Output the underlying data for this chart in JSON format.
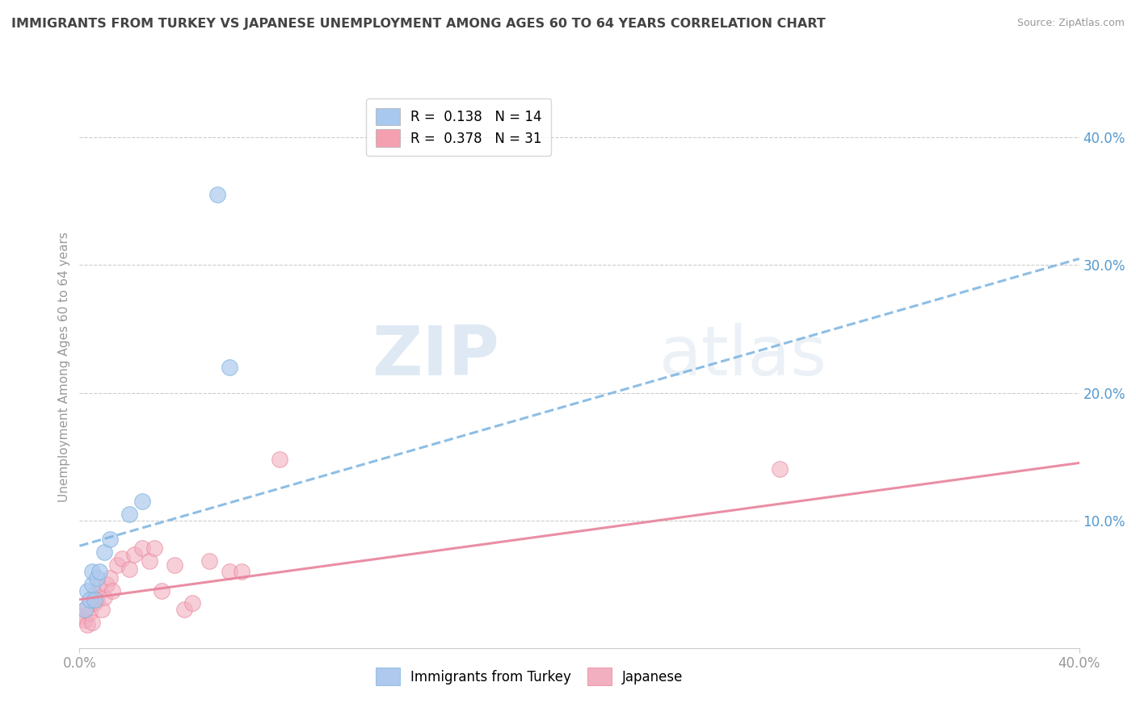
{
  "title": "IMMIGRANTS FROM TURKEY VS JAPANESE UNEMPLOYMENT AMONG AGES 60 TO 64 YEARS CORRELATION CHART",
  "source": "Source: ZipAtlas.com",
  "ylabel": "Unemployment Among Ages 60 to 64 years",
  "xlim": [
    0.0,
    0.4
  ],
  "ylim": [
    0.0,
    0.44
  ],
  "xtick_vals": [
    0.0,
    0.4
  ],
  "xtick_labels": [
    "0.0%",
    "40.0%"
  ],
  "ytick_vals": [
    0.1,
    0.2,
    0.3,
    0.4
  ],
  "ytick_labels_right": [
    "10.0%",
    "20.0%",
    "30.0%",
    "40.0%"
  ],
  "legend_entries": [
    {
      "label": "R =  0.138   N = 14",
      "color": "#a8c8f0"
    },
    {
      "label": "R =  0.378   N = 31",
      "color": "#f4a0b0"
    }
  ],
  "blue_scatter_x": [
    0.002,
    0.003,
    0.004,
    0.005,
    0.005,
    0.006,
    0.007,
    0.008,
    0.01,
    0.012,
    0.02,
    0.025,
    0.055,
    0.06
  ],
  "blue_scatter_y": [
    0.03,
    0.045,
    0.038,
    0.05,
    0.06,
    0.038,
    0.055,
    0.06,
    0.075,
    0.085,
    0.105,
    0.115,
    0.355,
    0.22
  ],
  "pink_scatter_x": [
    0.001,
    0.002,
    0.003,
    0.003,
    0.004,
    0.005,
    0.006,
    0.006,
    0.007,
    0.008,
    0.009,
    0.01,
    0.011,
    0.012,
    0.013,
    0.015,
    0.017,
    0.02,
    0.022,
    0.025,
    0.028,
    0.03,
    0.033,
    0.038,
    0.042,
    0.045,
    0.052,
    0.06,
    0.065,
    0.08,
    0.28
  ],
  "pink_scatter_y": [
    0.025,
    0.022,
    0.018,
    0.032,
    0.028,
    0.02,
    0.035,
    0.042,
    0.038,
    0.048,
    0.03,
    0.04,
    0.05,
    0.055,
    0.045,
    0.065,
    0.07,
    0.062,
    0.073,
    0.078,
    0.068,
    0.078,
    0.045,
    0.065,
    0.03,
    0.035,
    0.068,
    0.06,
    0.06,
    0.148,
    0.14
  ],
  "blue_line_x": [
    0.0,
    0.4
  ],
  "blue_line_y": [
    0.08,
    0.305
  ],
  "pink_line_x": [
    0.0,
    0.4
  ],
  "pink_line_y": [
    0.038,
    0.145
  ],
  "watermark_zip": "ZIP",
  "watermark_atlas": "atlas",
  "blue_color": "#7ab3e0",
  "pink_color": "#e8829a",
  "blue_scatter_color": "#aec9ed",
  "pink_scatter_color": "#f2afc0",
  "grid_color": "#cccccc",
  "title_color": "#444444",
  "axis_label_color": "#999999",
  "tick_color_right": "#5599cc",
  "background_color": "#ffffff"
}
